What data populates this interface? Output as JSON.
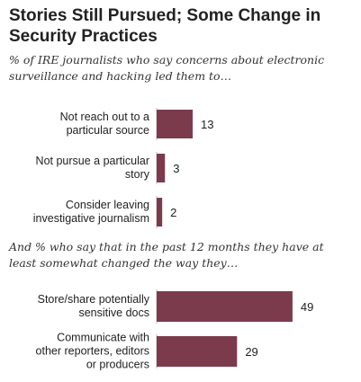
{
  "header": {
    "title": "Stories Still Pursued; Some Change  in\nSecurity Practices"
  },
  "chart_data": [
    {
      "type": "bar",
      "orientation": "horizontal",
      "subtitle": "% of IRE journalists who say concerns about electronic\nsurveillance and hacking led them to…",
      "categories": [
        "Not reach out to a\nparticular source",
        "Not pursue a particular\nstory",
        "Consider leaving\ninvestigative journalism"
      ],
      "values": [
        13,
        3,
        2
      ],
      "value_labels": [
        "13",
        "3",
        "2"
      ],
      "xlim": [
        0,
        60
      ],
      "grid": false
    },
    {
      "type": "bar",
      "orientation": "horizontal",
      "subtitle": "And % who say that in the past 12 months they have at\nleast somewhat changed the way they…",
      "categories": [
        "Store/share potentially\nsensitive docs",
        "Communicate with\nother reporters, editors\nor producers"
      ],
      "values": [
        49,
        29
      ],
      "value_labels": [
        "49",
        "29"
      ],
      "xlim": [
        0,
        60
      ],
      "grid": false
    }
  ],
  "colors": {
    "bar": "#7b3b4d",
    "text": "#222222"
  }
}
